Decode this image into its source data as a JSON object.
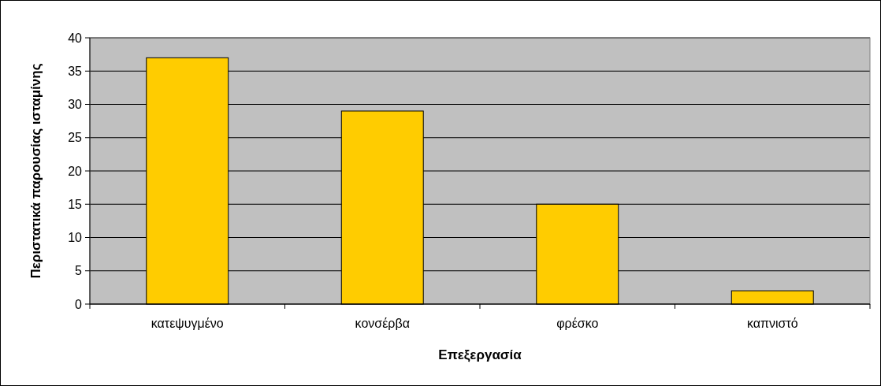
{
  "chart_data": {
    "type": "bar",
    "xlabel": "Επεξεργασία",
    "ylabel": "Περιστατικά παρουσίας ισταμίνης",
    "categories": [
      "κατεψυγμένο",
      "κονσέρβα",
      "φρέσκο",
      "καπνιστό"
    ],
    "values": [
      37,
      29,
      15,
      2
    ],
    "color": "#ffcc00",
    "ylim": [
      0,
      40
    ],
    "yticks": [
      0,
      5,
      10,
      15,
      20,
      25,
      30,
      35,
      40
    ],
    "grid": "y"
  }
}
